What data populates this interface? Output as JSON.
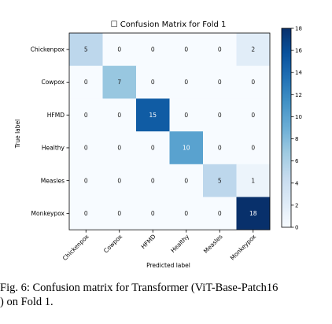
{
  "chart_data": {
    "type": "heatmap",
    "title": "☐ Confusion Matrix for Fold 1",
    "xlabel": "Predicted label",
    "ylabel": "True label",
    "rows": [
      "Chickenpox",
      "Cowpox",
      "HFMD",
      "Healthy",
      "Measles",
      "Monkeypox"
    ],
    "cols": [
      "Chickenpox",
      "Cowpox",
      "HFMD",
      "Healthy",
      "Measles",
      "Monkeypox"
    ],
    "values": [
      [
        5,
        0,
        0,
        0,
        0,
        2
      ],
      [
        0,
        7,
        0,
        0,
        0,
        0
      ],
      [
        0,
        0,
        15,
        0,
        0,
        0
      ],
      [
        0,
        0,
        0,
        10,
        0,
        0
      ],
      [
        0,
        0,
        0,
        0,
        5,
        1
      ],
      [
        0,
        0,
        0,
        0,
        0,
        18
      ]
    ],
    "colorbar": {
      "min": 0,
      "max": 18,
      "ticks": [
        0,
        2,
        4,
        6,
        8,
        10,
        12,
        14,
        16,
        18
      ],
      "colormap": "Blues"
    }
  },
  "caption": {
    "line1": "Fig. 6: Confusion matrix for Transformer (ViT-Base-Patch16",
    "line2": ") on Fold 1."
  }
}
